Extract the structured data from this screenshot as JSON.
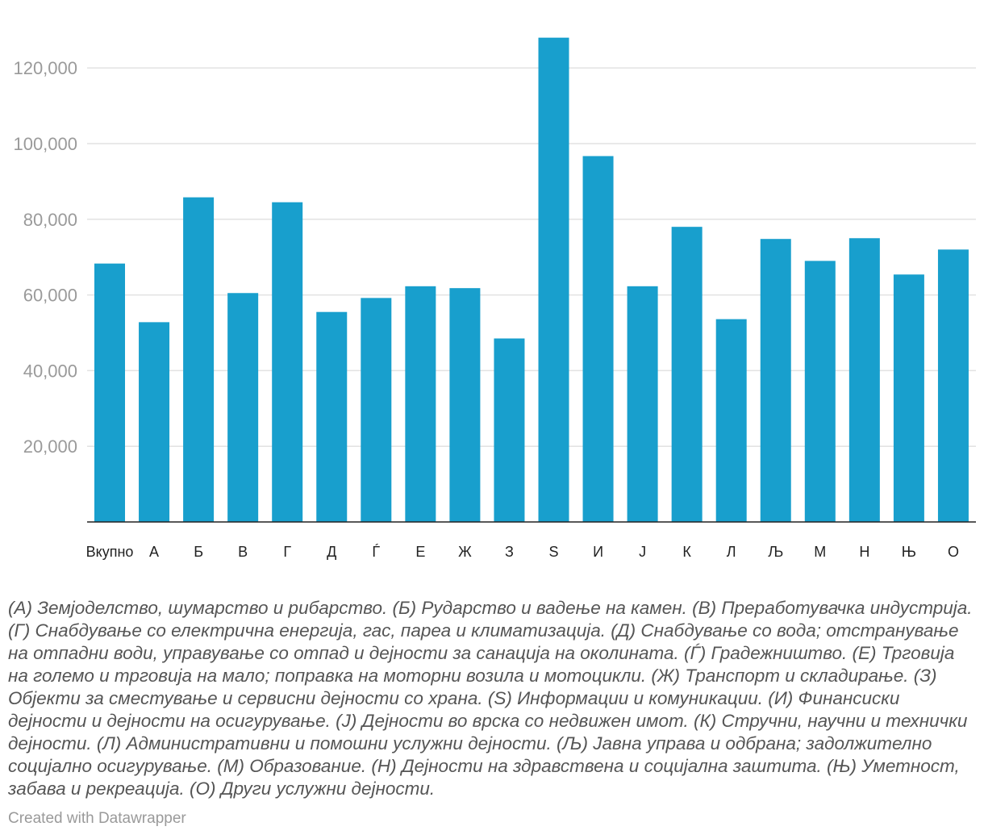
{
  "chart_data": {
    "type": "bar",
    "categories": [
      "Вкупно",
      "А",
      "Б",
      "В",
      "Г",
      "Д",
      "Ѓ",
      "Е",
      "Ж",
      "З",
      "S",
      "И",
      "Ј",
      "К",
      "Л",
      "Љ",
      "М",
      "Н",
      "Њ",
      "О"
    ],
    "values": [
      68300,
      52800,
      85800,
      60500,
      84500,
      55500,
      59200,
      62300,
      61800,
      48500,
      128000,
      96700,
      62300,
      78000,
      53600,
      74800,
      69000,
      75000,
      65400,
      72000
    ],
    "yticks": [
      20000,
      40000,
      60000,
      80000,
      100000,
      120000
    ],
    "ytick_labels": [
      "20,000",
      "40,000",
      "60,000",
      "80,000",
      "100,000",
      "120,000"
    ],
    "ylim": [
      0,
      130000
    ],
    "bar_color": "#189fcd",
    "title": "",
    "xlabel": "",
    "ylabel": ""
  },
  "footnote": "(А) Земјоделство, шумарство и рибарство. (Б) Рударство и вадење на камен. (В) Преработувачка индустрија. (Г) Снабдување со електрична енергија, гас, пареа и климатизација. (Д) Снабдување со вода; отстранување на отпадни води, управување со отпад и дејности за санација на околината. (Ѓ) Градежништво. (Е) Трговија на големо и трговија на мало; поправка на моторни возила и мотоцикли. (Ж) Транспорт и складирање. (З) Објекти за сместување и сервисни дејности со храна. (S) Информации и комуникации. (И) Финансиски дејности и дејности на осигурување. (Ј) Дејности во врска со недвижен имот. (К) Стручни, научни и технички дејности. (Л) Административни и помошни услужни дејности. (Љ) Јавна управа и одбрана; задолжително социјално осигурување. (М) Образование. (Н) Дејности на здравствена и социјална заштита. (Њ) Уметност, забава и рекреација. (О) Други услужни дејности.",
  "credit": "Created with Datawrapper"
}
